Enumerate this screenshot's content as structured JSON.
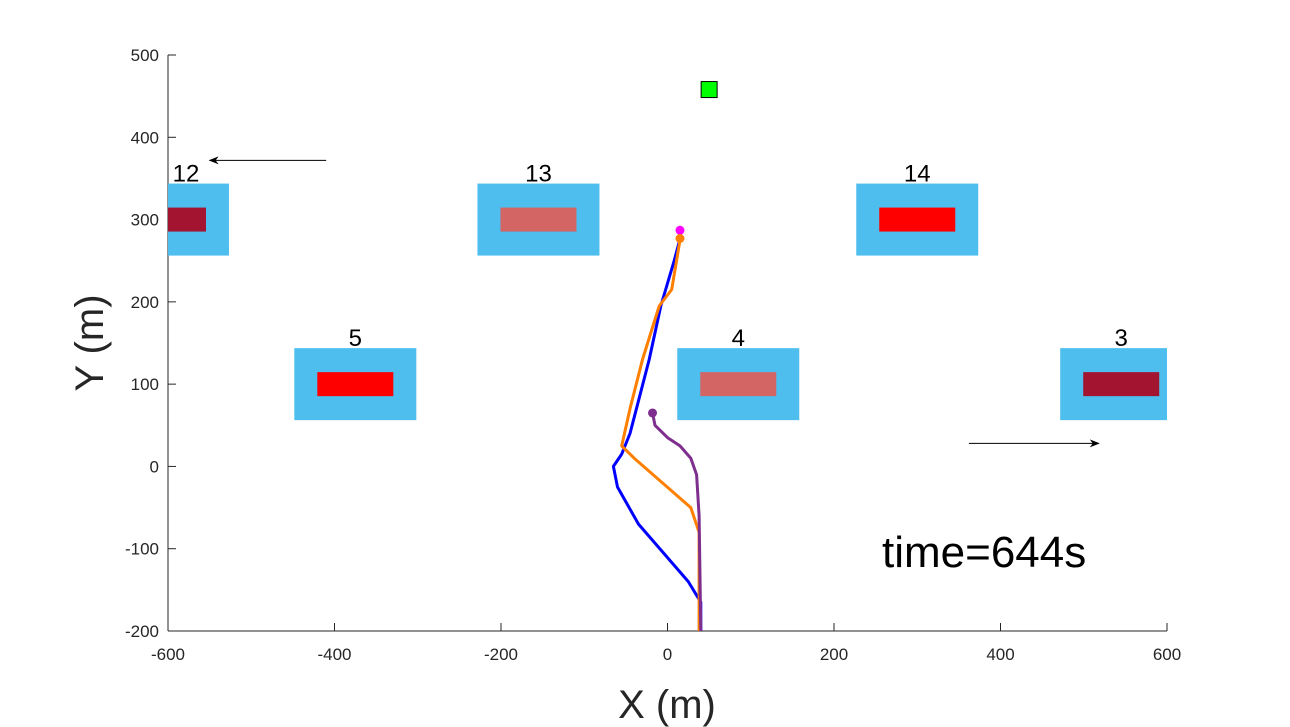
{
  "chart_data": {
    "type": "scatter",
    "title": "",
    "xlabel": "X (m)",
    "ylabel": "Y (m)",
    "xlim": [
      -600,
      600
    ],
    "ylim": [
      -200,
      500
    ],
    "xticks": [
      -600,
      -400,
      -200,
      0,
      200,
      400,
      600
    ],
    "yticks": [
      -200,
      -100,
      0,
      100,
      200,
      300,
      400,
      500
    ],
    "grid": false,
    "colors": {
      "zone": "#4dbeee",
      "red": "#ff0000",
      "salmon": "#d36565",
      "maroon": "#a2142f",
      "blue": "#0000ff",
      "orange": "#ff7f00",
      "purple": "#7e2f8e",
      "magenta": "#ff00ff",
      "green": "#00ff00",
      "arrow": "#000000"
    },
    "parking_zones": [
      {
        "label": "12",
        "x": -600,
        "y": 300,
        "inner_color": "maroon"
      },
      {
        "label": "13",
        "x": -155,
        "y": 300,
        "inner_color": "salmon"
      },
      {
        "label": "14",
        "x": 300,
        "y": 300,
        "inner_color": "red"
      },
      {
        "label": "5",
        "x": -375,
        "y": 100,
        "inner_color": "red"
      },
      {
        "label": "4",
        "x": 85,
        "y": 100,
        "inner_color": "salmon"
      },
      {
        "label": "3",
        "x": 545,
        "y": 100,
        "inner_color": "maroon"
      }
    ],
    "series": [
      {
        "color": "blue",
        "points": [
          [
            40,
            -200
          ],
          [
            40,
            -165
          ],
          [
            25,
            -140
          ],
          [
            -35,
            -70
          ],
          [
            -60,
            -25
          ],
          [
            -65,
            0
          ],
          [
            -55,
            15
          ],
          [
            -45,
            40
          ],
          [
            -22,
            130
          ],
          [
            -8,
            195
          ],
          [
            8,
            250
          ],
          [
            16,
            280
          ]
        ]
      },
      {
        "color": "orange",
        "points": [
          [
            38,
            -200
          ],
          [
            38,
            -80
          ],
          [
            28,
            -50
          ],
          [
            -40,
            10
          ],
          [
            -55,
            25
          ],
          [
            -45,
            70
          ],
          [
            -30,
            130
          ],
          [
            -10,
            195
          ],
          [
            5,
            215
          ],
          [
            15,
            275
          ]
        ]
      },
      {
        "color": "purple",
        "points": [
          [
            40,
            -200
          ],
          [
            38,
            -60
          ],
          [
            35,
            -10
          ],
          [
            28,
            10
          ],
          [
            15,
            25
          ],
          [
            0,
            35
          ],
          [
            -15,
            50
          ],
          [
            -18,
            65
          ]
        ]
      }
    ],
    "markers": [
      {
        "shape": "dot",
        "color": "purple",
        "x": -18,
        "y": 65
      },
      {
        "shape": "dot",
        "color": "magenta",
        "x": 15,
        "y": 287
      },
      {
        "shape": "dot",
        "color": "orange",
        "x": 15,
        "y": 277
      },
      {
        "shape": "square",
        "color": "green",
        "x": 50,
        "y": 458
      }
    ],
    "arrows": [
      {
        "from": [
          -410,
          372
        ],
        "to": [
          -550,
          372
        ]
      },
      {
        "from": [
          362,
          28
        ],
        "to": [
          518,
          28
        ]
      }
    ],
    "annotation": "time=644s"
  }
}
